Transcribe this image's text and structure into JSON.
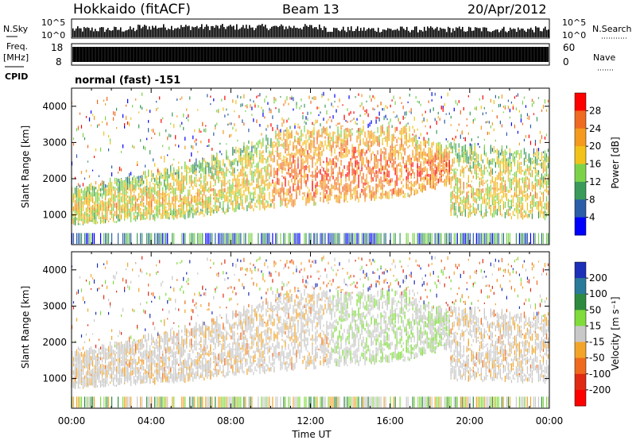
{
  "header": {
    "radar": "Hokkaido (fitACF)",
    "beam": "Beam 13",
    "date": "20/Apr/2012"
  },
  "noise_panel": {
    "left_label": "N.Sky",
    "right_label": "N.Search",
    "left_ticks": [
      "10^5",
      "10^0"
    ],
    "right_ticks": [
      "10^5",
      "10^0"
    ]
  },
  "freq_panel": {
    "left_label_top": "Freq.",
    "left_label_unit": "[MHz]",
    "right_label": "Nave",
    "left_ticks": [
      "18",
      "8"
    ],
    "right_ticks": [
      "60",
      "0"
    ],
    "cpid_label": "CPID",
    "cpid_text": "normal (fast) -151"
  },
  "x_axis": {
    "label": "Time UT",
    "ticks": [
      "00:00",
      "04:00",
      "08:00",
      "12:00",
      "16:00",
      "20:00",
      "00:00"
    ]
  },
  "power_panel": {
    "ylabel": "Slant Range [km]",
    "yticks": [
      "1000",
      "2000",
      "3000",
      "4000"
    ],
    "colorbar_label": "Power [dB]",
    "colorbar_ticks": [
      "4",
      "8",
      "12",
      "16",
      "20",
      "24",
      "28"
    ],
    "colors": [
      "#0000ff",
      "#2a5ea8",
      "#3a9a5a",
      "#7cd34a",
      "#f2c21a",
      "#f59a1e",
      "#ef6a22",
      "#ff0000"
    ]
  },
  "velocity_panel": {
    "ylabel": "Slant Range [km]",
    "yticks": [
      "1000",
      "2000",
      "3000",
      "4000"
    ],
    "colorbar_label": "Velocity [m s⁻¹]",
    "colorbar_ticks": [
      "200",
      "100",
      "50",
      "15",
      "-15",
      "-50",
      "-100",
      "-200"
    ],
    "colors": [
      "#1c2fb8",
      "#2a7a9a",
      "#2e8a3e",
      "#7fdc3a",
      "#c8c8c8",
      "#f3a52a",
      "#ef6a1e",
      "#e02a14",
      "#ff0000"
    ]
  },
  "chart_data": [
    {
      "type": "heatmap",
      "title": "Power",
      "ylabel": "Slant Range [km]",
      "xlabel": "Time UT",
      "xlim": [
        "00:00",
        "24:00"
      ],
      "ylim": [
        180,
        4500
      ],
      "colorbar": {
        "label": "Power [dB]",
        "range": [
          0,
          30
        ]
      },
      "echo_bands": [
        {
          "time_h": [
            0,
            6
          ],
          "range_km": [
            700,
            2200
          ],
          "power_db": 18
        },
        {
          "time_h": [
            6,
            11
          ],
          "range_km": [
            900,
            3300
          ],
          "power_db": 22
        },
        {
          "time_h": [
            11,
            17
          ],
          "range_km": [
            1300,
            3400
          ],
          "power_db": 26
        },
        {
          "time_h": [
            17,
            19
          ],
          "range_km": [
            1500,
            3000
          ],
          "power_db": 27
        },
        {
          "time_h": [
            19,
            24
          ],
          "range_km": [
            900,
            2700
          ],
          "power_db": 20
        }
      ]
    },
    {
      "type": "heatmap",
      "title": "Velocity",
      "ylabel": "Slant Range [km]",
      "xlabel": "Time UT",
      "xlim": [
        "00:00",
        "24:00"
      ],
      "ylim": [
        180,
        4500
      ],
      "colorbar": {
        "label": "Velocity [m s-1]",
        "range": [
          -200,
          200
        ]
      },
      "echo_bands": [
        {
          "time_h": [
            0,
            6
          ],
          "range_km": [
            700,
            2200
          ],
          "velocity_ms": -20
        },
        {
          "time_h": [
            6,
            11
          ],
          "range_km": [
            900,
            3300
          ],
          "velocity_ms": -10
        },
        {
          "time_h": [
            11,
            17
          ],
          "range_km": [
            1300,
            3400
          ],
          "velocity_ms": 20
        },
        {
          "time_h": [
            17,
            19
          ],
          "range_km": [
            1500,
            3000
          ],
          "velocity_ms": 40
        },
        {
          "time_h": [
            19,
            24
          ],
          "range_km": [
            900,
            2700
          ],
          "velocity_ms": -5
        }
      ]
    }
  ]
}
